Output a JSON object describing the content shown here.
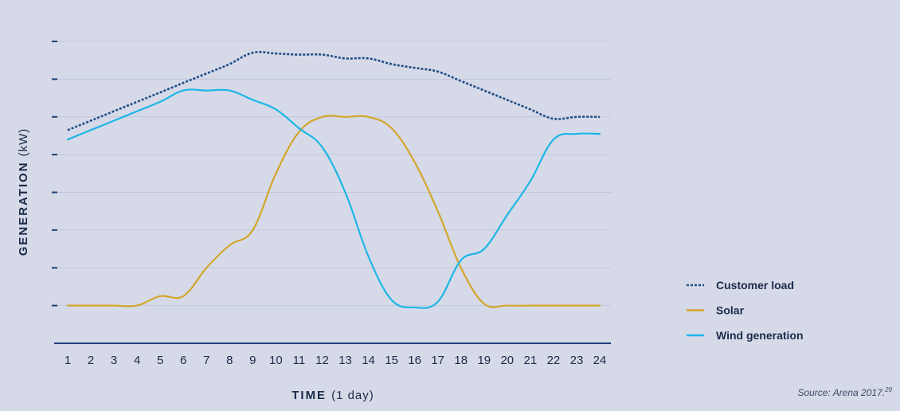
{
  "chart_data": {
    "type": "line",
    "xlabel": "TIME",
    "xlabel_note": "(1 day)",
    "ylabel": "GENERATION",
    "ylabel_note": "(kW)",
    "categories": [
      "1",
      "2",
      "3",
      "4",
      "5",
      "6",
      "7",
      "8",
      "9",
      "10",
      "11",
      "12",
      "13",
      "14",
      "15",
      "16",
      "17",
      "18",
      "19",
      "20",
      "21",
      "22",
      "23",
      "24"
    ],
    "x": [
      1,
      2,
      3,
      4,
      5,
      6,
      7,
      8,
      9,
      10,
      11,
      12,
      13,
      14,
      15,
      16,
      17,
      18,
      19,
      20,
      21,
      22,
      23,
      24
    ],
    "ylim": [
      0,
      8
    ],
    "yticks": [
      0,
      1,
      2,
      3,
      4,
      5,
      6,
      7,
      8
    ],
    "grid": true,
    "legend_position": "right",
    "series": [
      {
        "name": "Customer load",
        "style": "dotted",
        "color": "#1f4e85",
        "values": [
          5.65,
          5.9,
          6.15,
          6.4,
          6.65,
          6.9,
          7.15,
          7.4,
          7.7,
          7.68,
          7.65,
          7.65,
          7.55,
          7.55,
          7.4,
          7.3,
          7.2,
          6.95,
          6.7,
          6.45,
          6.2,
          5.95,
          6.0,
          6.0
        ]
      },
      {
        "name": "Solar",
        "style": "solid",
        "color": "#d4a52a",
        "values": [
          1.0,
          1.0,
          1.0,
          1.0,
          1.25,
          1.25,
          2.0,
          2.6,
          3.0,
          4.5,
          5.6,
          6.0,
          6.0,
          6.0,
          5.7,
          4.8,
          3.5,
          2.0,
          1.05,
          1.0,
          1.0,
          1.0,
          1.0,
          1.0
        ]
      },
      {
        "name": "Wind generation",
        "style": "solid",
        "color": "#1db6e6",
        "values": [
          5.4,
          5.65,
          5.9,
          6.15,
          6.4,
          6.7,
          6.7,
          6.7,
          6.45,
          6.2,
          5.7,
          5.2,
          4.0,
          2.3,
          1.15,
          0.95,
          1.1,
          2.2,
          2.5,
          3.4,
          4.3,
          5.4,
          5.55,
          5.55
        ]
      }
    ],
    "source": "Source: Arena 2017.",
    "source_note": "29"
  }
}
